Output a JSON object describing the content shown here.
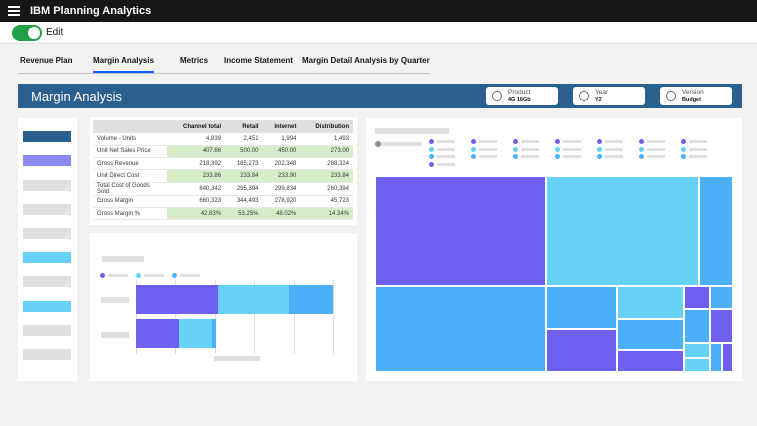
{
  "app": {
    "title": "IBM Planning Analytics"
  },
  "edit": {
    "label": "Edit",
    "enabled": true
  },
  "tabs": [
    {
      "label": "Revenue Plan",
      "active": false
    },
    {
      "label": "Margin Analysis",
      "active": true
    },
    {
      "label": "Metrics",
      "active": false
    },
    {
      "label": "Income Statement",
      "active": false
    },
    {
      "label": "Margin Detail Analysis by Quarter",
      "active": false
    }
  ],
  "header": {
    "title": "Margin Analysis",
    "selectors": [
      {
        "label": "Product",
        "value": "4G 16Gb"
      },
      {
        "label": "Year",
        "value": "Y2"
      },
      {
        "label": "Version",
        "value": "Budget"
      }
    ]
  },
  "colors": {
    "accent": "#0f62fe",
    "band": "#2b5f8e",
    "toggle_on": "#24a148",
    "highlight": "#d7ecc9",
    "purple": "#6f60f0",
    "cyan": "#66d2f7",
    "blue": "#4bb0f8",
    "navy": "#2b5f8e",
    "lavender": "#8a8af2"
  },
  "table": {
    "columns": [
      "",
      "Channel total",
      "Retail",
      "Internet",
      "Distribution"
    ],
    "rows": [
      {
        "label": "Volume - Units",
        "values": [
          "4,839",
          "2,451",
          "1,994",
          "1,493"
        ],
        "highlight": false
      },
      {
        "label": "Unit Net Sales Price",
        "values": [
          "407.66",
          "500.00",
          "450.00",
          "273.00"
        ],
        "highlight": true
      },
      {
        "label": "Gross Revenue",
        "values": [
          "218,392",
          "185,273",
          "202,348",
          "288,324"
        ],
        "highlight": false
      },
      {
        "label": "Unit Direct Cost",
        "values": [
          "233.86",
          "233.84",
          "233.90",
          "233.84"
        ],
        "highlight": true
      },
      {
        "label": "Total Cost of Goods Sold",
        "values": [
          "840,342",
          "295,394",
          "299,834",
          "260,394"
        ],
        "highlight": false
      },
      {
        "label": "Gross Margin",
        "values": [
          "660,323",
          "344,493",
          "278,920",
          "45,723"
        ],
        "highlight": false
      },
      {
        "label": "Gross Margin %",
        "values": [
          "42.63%",
          "53.25%",
          "48.02%",
          "14.34%"
        ],
        "highlight": true
      }
    ]
  },
  "sidebar": {
    "items": [
      {
        "color": "#2b5f8e"
      },
      {
        "color": "#8a8af2"
      },
      {
        "color": "#e0e0e0"
      },
      {
        "color": "#e0e0e0"
      },
      {
        "color": "#e0e0e0"
      },
      {
        "color": "#66d2f7"
      },
      {
        "color": "#e0e0e0"
      },
      {
        "color": "#66d2f7"
      },
      {
        "color": "#e0e0e0"
      },
      {
        "color": "#e0e0e0"
      }
    ]
  },
  "bar_chart": {
    "rows": [
      {
        "segments": [
          {
            "value": 0.46,
            "color": "#6f60f0"
          },
          {
            "value": 0.4,
            "color": "#66d2f7"
          },
          {
            "value": 0.25,
            "color": "#4bb0f8"
          }
        ]
      },
      {
        "segments": [
          {
            "value": 0.24,
            "color": "#6f60f0"
          },
          {
            "value": 0.19,
            "color": "#66d2f7"
          },
          {
            "value": 0.02,
            "color": "#4bb0f8"
          }
        ]
      }
    ],
    "legend_colors": [
      "#6f60f0",
      "#66d2f7",
      "#4bb0f8"
    ]
  },
  "treemap": {
    "legend_colors": [
      "#6f60f0",
      "#66d2f7",
      "#4bb0f8"
    ]
  }
}
